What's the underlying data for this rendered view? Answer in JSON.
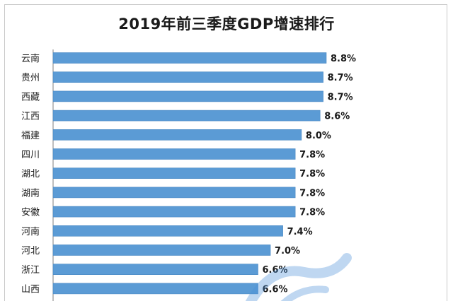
{
  "chart_data": {
    "type": "bar",
    "orientation": "horizontal",
    "title": "2019年前三季度GDP增速排行",
    "categories": [
      "云南",
      "贵州",
      "西藏",
      "江西",
      "福建",
      "四川",
      "湖北",
      "湖南",
      "安徽",
      "河南",
      "河北",
      "浙江",
      "山西"
    ],
    "values": [
      8.8,
      8.7,
      8.7,
      8.6,
      8.0,
      7.8,
      7.8,
      7.8,
      7.8,
      7.4,
      7.0,
      6.6,
      6.6
    ],
    "value_labels": [
      "8.8%",
      "8.7%",
      "8.7%",
      "8.6%",
      "8.0%",
      "7.8%",
      "7.8%",
      "7.8%",
      "7.8%",
      "7.4%",
      "7.0%",
      "6.6%",
      "6.6%"
    ],
    "xlim": [
      0,
      9.5
    ],
    "grid": false,
    "legend": "none",
    "bar_color": "#5b9bd5"
  }
}
